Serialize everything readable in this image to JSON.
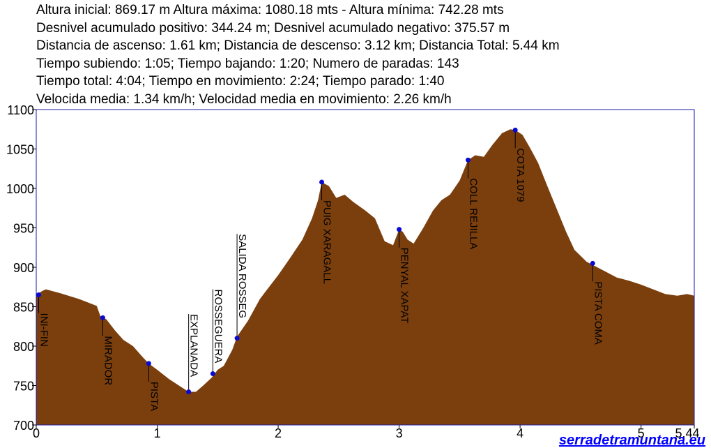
{
  "stats": [
    "Altura inicial: 869.17 m Altura máxima: 1080.18 mts - Altura mínima: 742.28 mts",
    "Desnivel acumulado positivo: 344.24 m; Desnivel acumulado negativo: 375.57 m",
    "Distancia de ascenso: 1.61 km; Distancia de descenso: 3.12 km; Distancia Total: 5.44 km",
    "Tiempo subiendo: 1:05; Tiempo bajando: 1:20; Numero de paradas: 143",
    "Tiempo total: 4:04; Tiempo en movimiento: 2:24; Tiempo parado: 1:40",
    "Velocida media: 1.34 km/h; Velocidad media en movimiento: 2.26 km/h"
  ],
  "watermark": "serradetramuntana.eu",
  "colors": {
    "fill": "#7b3f0e",
    "frame": "#1a1aa6",
    "marker": "#0a0ad0",
    "watermark": "#0000ff"
  },
  "chart_data": {
    "type": "area",
    "xlim": [
      0,
      5.44
    ],
    "ylim": [
      700,
      1100
    ],
    "x_ticks": [
      {
        "value": 0,
        "label": "0"
      },
      {
        "value": 1,
        "label": "1"
      },
      {
        "value": 2,
        "label": "2"
      },
      {
        "value": 3,
        "label": "3"
      },
      {
        "value": 4,
        "label": "4"
      },
      {
        "value": 5,
        "label": "5"
      },
      {
        "value": 5.44,
        "label": "5.44"
      }
    ],
    "y_ticks": [
      {
        "value": 700,
        "label": "700"
      },
      {
        "value": 750,
        "label": "750"
      },
      {
        "value": 800,
        "label": "800"
      },
      {
        "value": 850,
        "label": "850"
      },
      {
        "value": 900,
        "label": "900"
      },
      {
        "value": 950,
        "label": "950"
      },
      {
        "value": 1000,
        "label": "1000"
      },
      {
        "value": 1050,
        "label": "1050"
      },
      {
        "value": 1100,
        "label": "1100"
      }
    ],
    "profile": [
      [
        0,
        865
      ],
      [
        0.05,
        870
      ],
      [
        0.08,
        872
      ],
      [
        0.2,
        867
      ],
      [
        0.35,
        860
      ],
      [
        0.5,
        851
      ],
      [
        0.53,
        838
      ],
      [
        0.58,
        834
      ],
      [
        0.65,
        820
      ],
      [
        0.72,
        808
      ],
      [
        0.8,
        800
      ],
      [
        0.88,
        786
      ],
      [
        0.93,
        778
      ],
      [
        1.0,
        770
      ],
      [
        1.1,
        758
      ],
      [
        1.2,
        748
      ],
      [
        1.26,
        742
      ],
      [
        1.32,
        742
      ],
      [
        1.38,
        750
      ],
      [
        1.45,
        760
      ],
      [
        1.5,
        770
      ],
      [
        1.55,
        775
      ],
      [
        1.62,
        795
      ],
      [
        1.66,
        812
      ],
      [
        1.75,
        832
      ],
      [
        1.85,
        860
      ],
      [
        2.0,
        890
      ],
      [
        2.1,
        912
      ],
      [
        2.2,
        935
      ],
      [
        2.28,
        962
      ],
      [
        2.33,
        985
      ],
      [
        2.36,
        1008
      ],
      [
        2.42,
        1003
      ],
      [
        2.48,
        988
      ],
      [
        2.55,
        992
      ],
      [
        2.62,
        983
      ],
      [
        2.72,
        972
      ],
      [
        2.8,
        962
      ],
      [
        2.88,
        933
      ],
      [
        2.95,
        928
      ],
      [
        3.0,
        948
      ],
      [
        3.03,
        945
      ],
      [
        3.07,
        935
      ],
      [
        3.12,
        930
      ],
      [
        3.2,
        950
      ],
      [
        3.28,
        972
      ],
      [
        3.35,
        985
      ],
      [
        3.42,
        992
      ],
      [
        3.5,
        1010
      ],
      [
        3.57,
        1036
      ],
      [
        3.63,
        1042
      ],
      [
        3.7,
        1040
      ],
      [
        3.77,
        1055
      ],
      [
        3.85,
        1070
      ],
      [
        3.92,
        1075
      ],
      [
        3.96,
        1074
      ],
      [
        4.02,
        1068
      ],
      [
        4.08,
        1052
      ],
      [
        4.15,
        1032
      ],
      [
        4.22,
        1005
      ],
      [
        4.3,
        975
      ],
      [
        4.38,
        945
      ],
      [
        4.45,
        922
      ],
      [
        4.55,
        907
      ],
      [
        4.6,
        903
      ],
      [
        4.7,
        895
      ],
      [
        4.8,
        887
      ],
      [
        4.9,
        883
      ],
      [
        5.0,
        878
      ],
      [
        5.1,
        872
      ],
      [
        5.2,
        866
      ],
      [
        5.3,
        864
      ],
      [
        5.38,
        866
      ],
      [
        5.44,
        864
      ]
    ],
    "waypoints": [
      {
        "x": 0.02,
        "y": 865,
        "label": "INI-FIN"
      },
      {
        "x": 0.55,
        "y": 836,
        "label": "MIRADOR"
      },
      {
        "x": 0.93,
        "y": 778,
        "label": "PISTA"
      },
      {
        "x": 1.26,
        "y": 742,
        "label": "EXPLANADA"
      },
      {
        "x": 1.46,
        "y": 765,
        "label": "ROSSEGUERA"
      },
      {
        "x": 1.66,
        "y": 810,
        "label": "SALIDA ROSSEG"
      },
      {
        "x": 2.36,
        "y": 1008,
        "label": "PUIG XARAGALL"
      },
      {
        "x": 3.0,
        "y": 948,
        "label": "PENYAL XAPAT"
      },
      {
        "x": 3.57,
        "y": 1036,
        "label": "COLL REJILLA"
      },
      {
        "x": 3.96,
        "y": 1074,
        "label": "COTA 1079"
      },
      {
        "x": 4.6,
        "y": 905,
        "label": "PISTA COMA"
      }
    ]
  }
}
